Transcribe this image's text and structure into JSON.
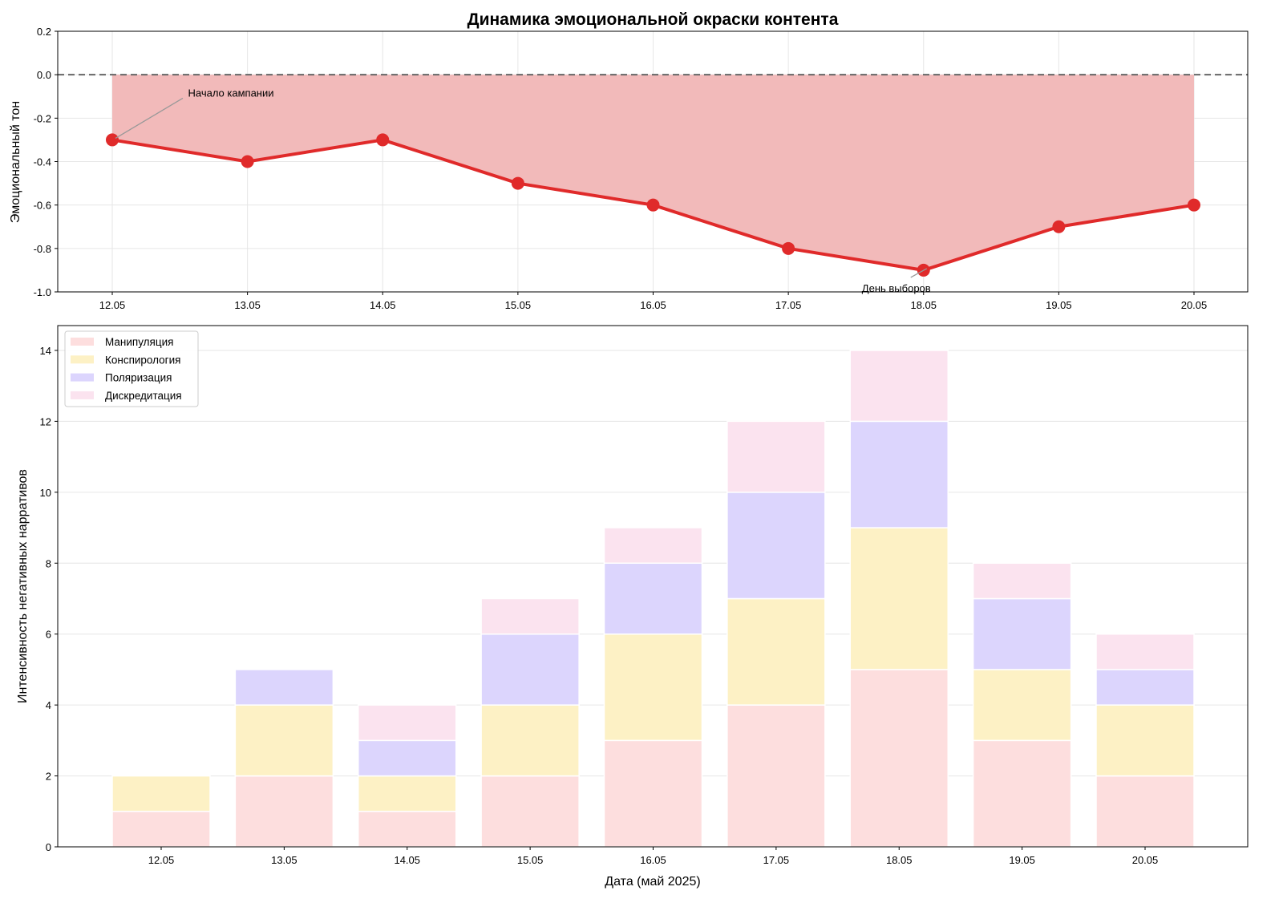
{
  "chart_data": [
    {
      "type": "line",
      "title": "Динамика эмоциональной окраски контента",
      "xlabel": "",
      "ylabel": "Эмоциональный тон",
      "categories": [
        "12.05",
        "13.05",
        "14.05",
        "15.05",
        "16.05",
        "17.05",
        "18.05",
        "19.05",
        "20.05"
      ],
      "values": [
        -0.3,
        -0.4,
        -0.3,
        -0.5,
        -0.6,
        -0.8,
        -0.9,
        -0.7,
        -0.6
      ],
      "ylim": [
        -1.0,
        0.2
      ],
      "yticks": [
        "0.2",
        "0.0",
        "-0.2",
        "-0.4",
        "-0.6",
        "-0.8",
        "-1.0"
      ],
      "grid": true,
      "reference_line": 0.0,
      "fill_to_zero": true,
      "annotations": [
        {
          "text": "Начало кампании",
          "category": "12.05",
          "value": -0.3
        },
        {
          "text": "День выборов",
          "category": "18.05",
          "value": -0.9
        }
      ],
      "colors": {
        "line": "#e02a2a",
        "fill": "#f2baba"
      }
    },
    {
      "type": "bar",
      "stacked": true,
      "xlabel": "Дата (май 2025)",
      "ylabel": "Интенсивность негативных нарративов",
      "categories": [
        "12.05",
        "13.05",
        "14.05",
        "15.05",
        "16.05",
        "17.05",
        "18.05",
        "19.05",
        "20.05"
      ],
      "series": [
        {
          "name": "Манипуляция",
          "color": "#fddede",
          "values": [
            1,
            2,
            1,
            2,
            3,
            4,
            5,
            3,
            2
          ]
        },
        {
          "name": "Конспирология",
          "color": "#fdf1c5",
          "values": [
            1,
            2,
            1,
            2,
            3,
            3,
            4,
            2,
            2
          ]
        },
        {
          "name": "Поляризация",
          "color": "#dcd5fd",
          "values": [
            0,
            1,
            1,
            2,
            2,
            3,
            3,
            2,
            1
          ]
        },
        {
          "name": "Дискредитация",
          "color": "#fbe3ef",
          "values": [
            0,
            0,
            1,
            1,
            1,
            2,
            2,
            1,
            1
          ]
        }
      ],
      "ylim": [
        0,
        14.7
      ],
      "yticks": [
        "0",
        "2",
        "4",
        "6",
        "8",
        "10",
        "12",
        "14"
      ],
      "grid": true,
      "legend": "top-left"
    }
  ]
}
